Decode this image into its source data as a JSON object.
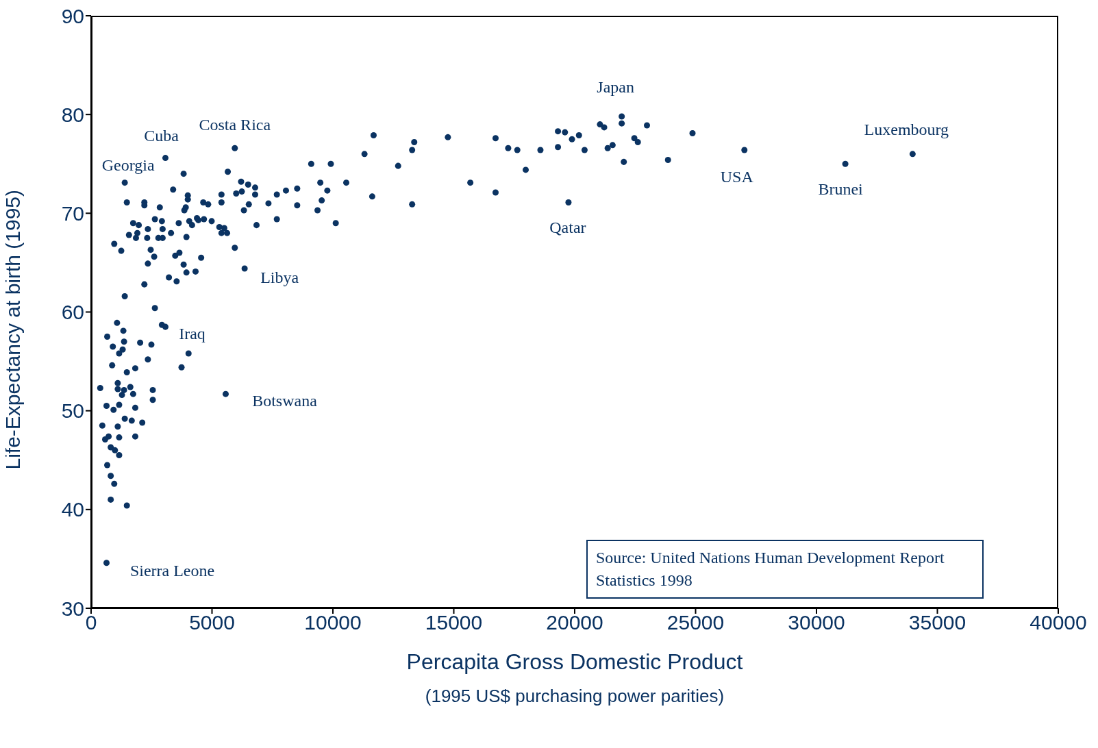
{
  "chart_data": {
    "type": "scatter",
    "xlabel": "Percapita Gross Domestic Product\n(1995 US$ purchasing power parities)",
    "ylabel": "Life-Expectancy at birth (1995)",
    "xlim": [
      0,
      40000
    ],
    "xticks": [
      0,
      5000,
      10000,
      15000,
      20000,
      25000,
      30000,
      35000,
      40000
    ],
    "ylim": [
      30,
      90
    ],
    "yticks": [
      30,
      40,
      50,
      60,
      70,
      80,
      90
    ],
    "grid": false,
    "legend": false,
    "marker": "circle",
    "series": [
      {
        "color": "#0b3362",
        "x": [
          377,
          464,
          580,
          667,
          638,
          667,
          638,
          725,
          812,
          812,
          812,
          899,
          870,
          928,
          957,
          957,
          986,
          1073,
          1102,
          1102,
          1102,
          1160,
          1160,
          1160,
          1160,
          1247,
          1276,
          1305,
          1334,
          1363,
          1363,
          1392,
          1392,
          1392,
          1479,
          1479,
          1479,
          1566,
          1623,
          1681,
          1739,
          1739,
          1826,
          1826,
          1826,
          1855,
          1913,
          1971,
          2029,
          2116,
          2203,
          2203,
          2203,
          2319,
          2348,
          2348,
          2348,
          2464,
          2493,
          2551,
          2551,
          2609,
          2638,
          2638,
          2783,
          2841,
          2928,
          2928,
          2957,
          2957,
          3073,
          3073,
          3218,
          3305,
          3392,
          3479,
          3537,
          3624,
          3653,
          3740,
          3827,
          3827,
          3856,
          3914,
          3943,
          3943,
          4000,
          4000,
          4030,
          4059,
          4175,
          4320,
          4378,
          4436,
          4551,
          4638,
          4667,
          4841,
          4986,
          5305,
          5392,
          5392,
          5392,
          5508,
          5624,
          5566,
          5653,
          5943,
          5943,
          6001,
          6204,
          6233,
          6320,
          6349,
          6494,
          6523,
          6784,
          6784,
          6842,
          7335,
          7682,
          7682,
          8059,
          8523,
          8523,
          9103,
          9364,
          9480,
          9538,
          9770,
          9915,
          10118,
          10553,
          11307,
          11626,
          11684,
          12698,
          13277,
          13277,
          13364,
          14756,
          15684,
          16728,
          16728,
          17250,
          17627,
          17975,
          18583,
          19308,
          19308,
          19598,
          19743,
          19888,
          20177,
          20409,
          21046,
          21220,
          21365,
          21568,
          21945,
          21945,
          22032,
          22467,
          22612,
          22989,
          23859,
          24873,
          27019,
          31193,
          33976
        ],
        "values": [
          52.3,
          48.5,
          47.1,
          57.5,
          50.5,
          44.5,
          34.6,
          47.4,
          46.3,
          43.4,
          41.0,
          56.5,
          54.6,
          50.1,
          66.9,
          42.6,
          46.0,
          58.9,
          52.8,
          52.2,
          48.4,
          55.8,
          50.6,
          47.3,
          45.5,
          66.2,
          51.6,
          56.2,
          58.1,
          57.0,
          52.1,
          73.1,
          61.6,
          49.2,
          71.1,
          53.9,
          40.4,
          67.8,
          52.4,
          49.0,
          69.0,
          51.7,
          50.3,
          54.3,
          47.4,
          67.5,
          68.0,
          68.8,
          56.9,
          48.8,
          71.1,
          62.8,
          70.8,
          67.5,
          68.4,
          64.9,
          55.2,
          66.3,
          56.7,
          52.1,
          51.1,
          65.6,
          60.4,
          69.4,
          67.5,
          70.6,
          58.7,
          69.2,
          68.4,
          67.5,
          75.6,
          58.5,
          63.5,
          68.0,
          72.4,
          65.7,
          63.1,
          69.0,
          66.0,
          54.4,
          74.0,
          64.8,
          70.3,
          70.6,
          67.6,
          64.0,
          71.8,
          71.4,
          55.8,
          69.2,
          68.8,
          64.1,
          69.5,
          69.3,
          65.5,
          71.1,
          69.4,
          70.9,
          69.2,
          68.6,
          71.9,
          71.1,
          68.0,
          68.5,
          68.0,
          51.7,
          74.2,
          76.6,
          66.5,
          72.0,
          73.2,
          72.2,
          70.3,
          64.4,
          72.9,
          70.9,
          72.6,
          71.9,
          68.8,
          71.0,
          71.9,
          69.4,
          72.3,
          72.5,
          70.8,
          75.0,
          70.3,
          73.1,
          71.3,
          72.3,
          75.0,
          69.0,
          73.1,
          76.0,
          71.7,
          77.9,
          74.8,
          76.4,
          70.9,
          77.2,
          77.7,
          73.1,
          77.6,
          72.1,
          76.6,
          76.4,
          74.4,
          76.4,
          78.3,
          76.7,
          78.2,
          71.1,
          77.5,
          77.9,
          76.4,
          79.0,
          78.7,
          76.6,
          76.9,
          79.8,
          79.1,
          75.2,
          77.6,
          77.2,
          78.9,
          75.4,
          78.1,
          76.4,
          75.0,
          76.0
        ]
      }
    ],
    "annotations": [
      {
        "text": "Japan",
        "x": 21945,
        "y": 79.8
      },
      {
        "text": "Cuba",
        "x": 3073,
        "y": 75.6
      },
      {
        "text": "Costa Rica",
        "x": 5943,
        "y": 76.6
      },
      {
        "text": "Georgia",
        "x": 1392,
        "y": 73.1
      },
      {
        "text": "Luxembourg",
        "x": 33976,
        "y": 76.0
      },
      {
        "text": "USA",
        "x": 27019,
        "y": 76.4
      },
      {
        "text": "Brunei",
        "x": 31193,
        "y": 75.0
      },
      {
        "text": "Qatar",
        "x": 19743,
        "y": 71.1
      },
      {
        "text": "Libya",
        "x": 6349,
        "y": 64.4
      },
      {
        "text": "Iraq",
        "x": 3073,
        "y": 58.5
      },
      {
        "text": "Botswana",
        "x": 5566,
        "y": 51.7
      },
      {
        "text": "Sierra Leone",
        "x": 638,
        "y": 34.6
      },
      "Source: United Nations Human Development Report\nStatistics 1998"
    ]
  }
}
